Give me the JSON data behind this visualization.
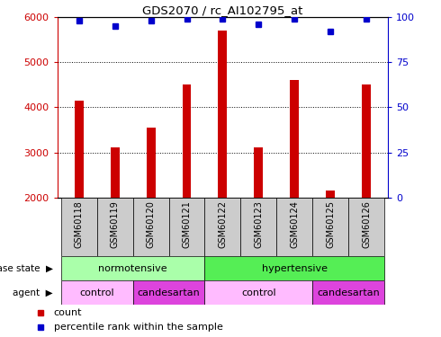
{
  "title": "GDS2070 / rc_AI102795_at",
  "samples": [
    "GSM60118",
    "GSM60119",
    "GSM60120",
    "GSM60121",
    "GSM60122",
    "GSM60123",
    "GSM60124",
    "GSM60125",
    "GSM60126"
  ],
  "counts": [
    4150,
    3100,
    3550,
    4500,
    5700,
    3100,
    4600,
    2150,
    4500
  ],
  "percentiles": [
    98,
    95,
    98,
    99,
    99,
    96,
    99,
    92,
    99
  ],
  "ylim_left": [
    2000,
    6000
  ],
  "ylim_right": [
    0,
    100
  ],
  "yticks_left": [
    2000,
    3000,
    4000,
    5000,
    6000
  ],
  "yticks_right": [
    0,
    25,
    50,
    75,
    100
  ],
  "bar_color": "#cc0000",
  "dot_color": "#0000cc",
  "sample_box_color": "#cccccc",
  "disease_state_groups": [
    {
      "label": "normotensive",
      "start": 0,
      "end": 3,
      "color": "#aaffaa"
    },
    {
      "label": "hypertensive",
      "start": 4,
      "end": 8,
      "color": "#55ee55"
    }
  ],
  "agent_groups": [
    {
      "label": "control",
      "start": 0,
      "end": 1,
      "color": "#ffbbff"
    },
    {
      "label": "candesartan",
      "start": 2,
      "end": 3,
      "color": "#dd44dd"
    },
    {
      "label": "control",
      "start": 4,
      "end": 6,
      "color": "#ffbbff"
    },
    {
      "label": "candesartan",
      "start": 7,
      "end": 8,
      "color": "#dd44dd"
    }
  ],
  "label_disease_state": "disease state",
  "label_agent": "agent",
  "legend_count": "count",
  "legend_percentile": "percentile rank within the sample",
  "left_axis_color": "#cc0000",
  "right_axis_color": "#0000cc",
  "bar_width": 0.25
}
